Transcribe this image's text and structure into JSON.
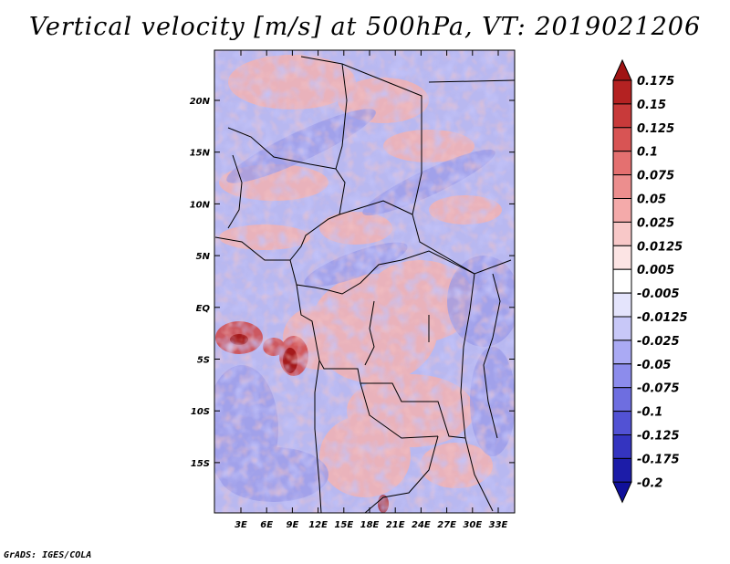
{
  "title": "Vertical velocity [m/s] at 500hPa, VT: 2019021206",
  "footer": "GrADS: IGES/COLA",
  "map": {
    "lat_labels": [
      "20N",
      "15N",
      "10N",
      "5N",
      "EQ",
      "5S",
      "10S",
      "15S"
    ],
    "lon_labels": [
      "3E",
      "6E",
      "9E",
      "12E",
      "15E",
      "18E",
      "21E",
      "24E",
      "27E",
      "30E",
      "33E"
    ]
  },
  "colorbar": {
    "levels": [
      "0.175",
      "0.15",
      "0.125",
      "0.1",
      "0.075",
      "0.05",
      "0.025",
      "0.0125",
      "0.005",
      "-0.005",
      "-0.0125",
      "-0.025",
      "-0.05",
      "-0.075",
      "-0.1",
      "-0.125",
      "-0.175",
      "-0.2"
    ],
    "colors": [
      "#a01414",
      "#b42222",
      "#c83a3a",
      "#d85454",
      "#e47070",
      "#ec8e8e",
      "#f4aaaa",
      "#f8c8c8",
      "#fce4e4",
      "#ffffff",
      "#e4e4fc",
      "#c8c8f8",
      "#aaaaf4",
      "#8c8cec",
      "#6e6ee0",
      "#5252d4",
      "#3434c0",
      "#1c1ca8",
      "#10109a"
    ]
  }
}
